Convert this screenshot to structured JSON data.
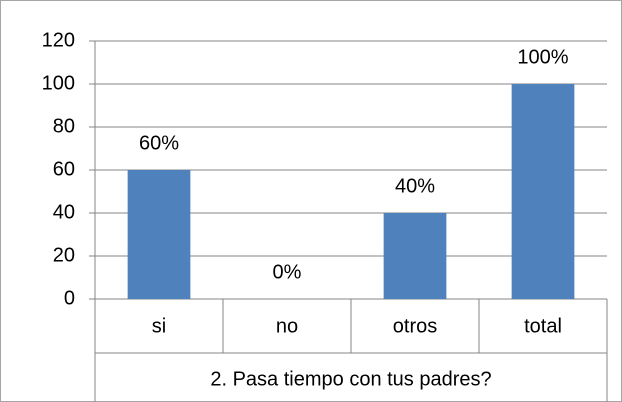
{
  "chart_data": {
    "type": "bar",
    "x_label": "2. Pasa tiempo con tus padres?",
    "categories": [
      "si",
      "no",
      "otros",
      "total"
    ],
    "values": [
      60,
      0,
      40,
      100
    ],
    "value_labels": [
      "60%",
      "0%",
      "40%",
      "100%"
    ],
    "color": "#4f81bd",
    "ylim": [
      0,
      120
    ],
    "yticks": [
      0,
      20,
      40,
      60,
      80,
      100,
      120
    ],
    "grid": true
  }
}
